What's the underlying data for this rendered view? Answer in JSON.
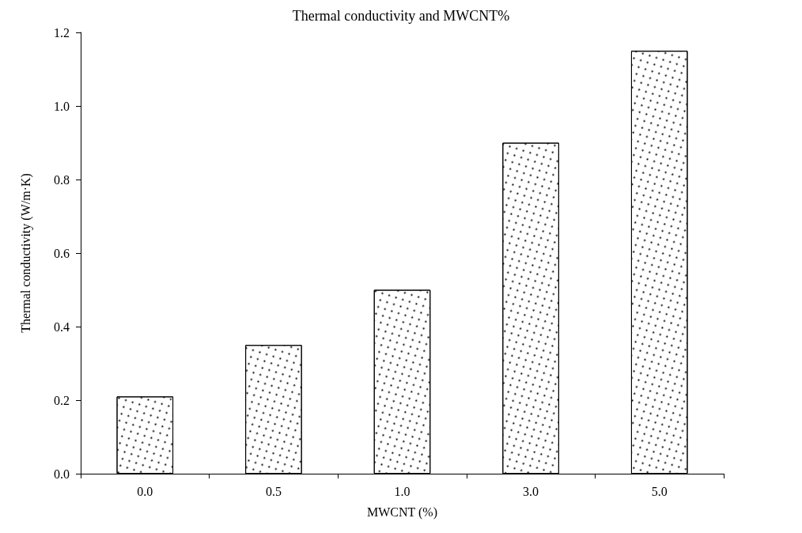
{
  "chart_data": {
    "type": "bar",
    "title": "Thermal conductivity and MWCNT%",
    "xlabel": "MWCNT (%)",
    "ylabel": "Thermal conductivity (W/m·K)",
    "categories": [
      "0.0",
      "0.5",
      "1.0",
      "3.0",
      "5.0"
    ],
    "values": [
      0.21,
      0.35,
      0.5,
      0.9,
      1.15
    ],
    "color": "#ffffff",
    "ylim": [
      0,
      1.2
    ],
    "yticks": [
      {
        "value": 0,
        "label": "0.0"
      },
      {
        "value": 0.2,
        "label": "0.2"
      },
      {
        "value": 0.4,
        "label": "0.4"
      },
      {
        "value": 0.6,
        "label": "0.6"
      },
      {
        "value": 0.8,
        "label": "0.8"
      },
      {
        "value": 1.0,
        "label": "1.0"
      },
      {
        "value": 1.2,
        "label": "1.2"
      }
    ],
    "grid": false
  }
}
